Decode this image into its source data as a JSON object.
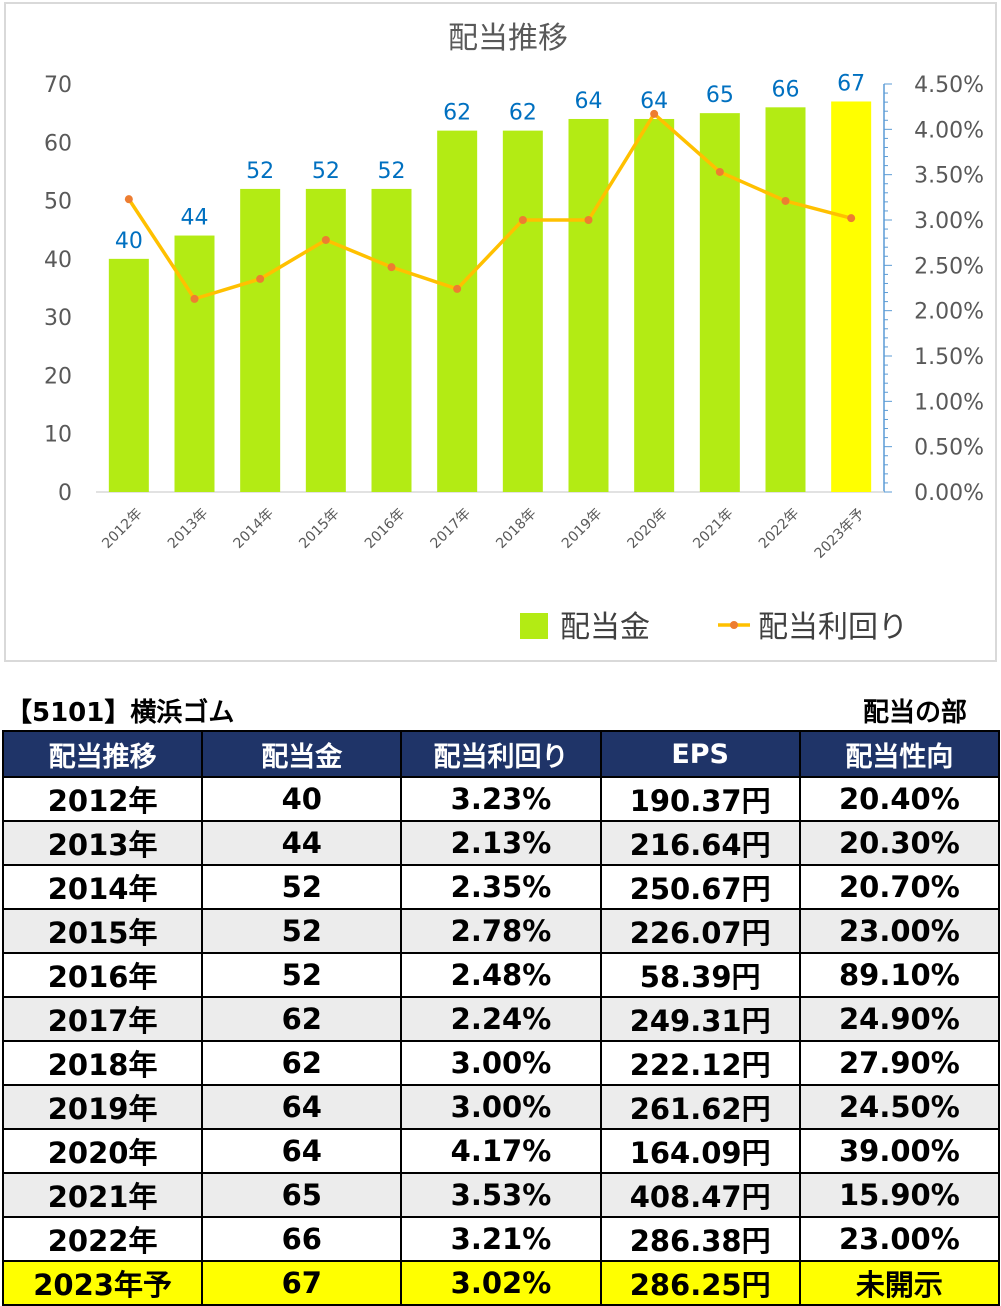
{
  "chart_data": {
    "type": "bar+line",
    "title": "配当推移",
    "categories": [
      "2012年",
      "2013年",
      "2014年",
      "2015年",
      "2016年",
      "2017年",
      "2018年",
      "2019年",
      "2020年",
      "2021年",
      "2022年",
      "2023年予"
    ],
    "series": [
      {
        "name": "配当金",
        "type": "bar",
        "axis": "left",
        "values": [
          40,
          44,
          52,
          52,
          52,
          62,
          62,
          64,
          64,
          65,
          66,
          67
        ],
        "color": "#b3eb14",
        "highlight_last_color": "#ffff00"
      },
      {
        "name": "配当利回り",
        "type": "line",
        "axis": "right",
        "values": [
          3.23,
          2.13,
          2.35,
          2.78,
          2.48,
          2.24,
          3.0,
          3.0,
          4.17,
          3.53,
          3.21,
          3.02
        ],
        "color": "#ffc000",
        "marker_color": "#ed7d31"
      }
    ],
    "y_left": {
      "min": 0,
      "max": 70,
      "step": 10,
      "ticks": [
        "0",
        "10",
        "20",
        "30",
        "40",
        "50",
        "60",
        "70"
      ]
    },
    "y_right": {
      "min": 0,
      "max": 4.5,
      "step": 0.5,
      "ticks": [
        "0.00%",
        "0.50%",
        "1.00%",
        "1.50%",
        "2.00%",
        "2.50%",
        "3.00%",
        "3.50%",
        "4.00%",
        "4.50%"
      ]
    },
    "data_labels": [
      "40",
      "44",
      "52",
      "52",
      "52",
      "62",
      "62",
      "64",
      "64",
      "65",
      "66",
      "67"
    ],
    "legend_position": "bottom-right",
    "grid": false
  },
  "header": {
    "stock_title": "【5101】横浜ゴム",
    "section_label": "配当の部"
  },
  "table": {
    "columns": [
      "配当推移",
      "配当金",
      "配当利回り",
      "EPS",
      "配当性向"
    ],
    "rows": [
      [
        "2012年",
        "40",
        "3.23%",
        "190.37円",
        "20.40%"
      ],
      [
        "2013年",
        "44",
        "2.13%",
        "216.64円",
        "20.30%"
      ],
      [
        "2014年",
        "52",
        "2.35%",
        "250.67円",
        "20.70%"
      ],
      [
        "2015年",
        "52",
        "2.78%",
        "226.07円",
        "23.00%"
      ],
      [
        "2016年",
        "52",
        "2.48%",
        "58.39円",
        "89.10%"
      ],
      [
        "2017年",
        "62",
        "2.24%",
        "249.31円",
        "24.90%"
      ],
      [
        "2018年",
        "62",
        "3.00%",
        "222.12円",
        "27.90%"
      ],
      [
        "2019年",
        "64",
        "3.00%",
        "261.62円",
        "24.50%"
      ],
      [
        "2020年",
        "64",
        "4.17%",
        "164.09円",
        "39.00%"
      ],
      [
        "2021年",
        "65",
        "3.53%",
        "408.47円",
        "15.90%"
      ],
      [
        "2022年",
        "66",
        "3.21%",
        "286.38円",
        "23.00%"
      ],
      [
        "2023年予",
        "67",
        "3.02%",
        "286.25円",
        "未開示"
      ]
    ]
  }
}
